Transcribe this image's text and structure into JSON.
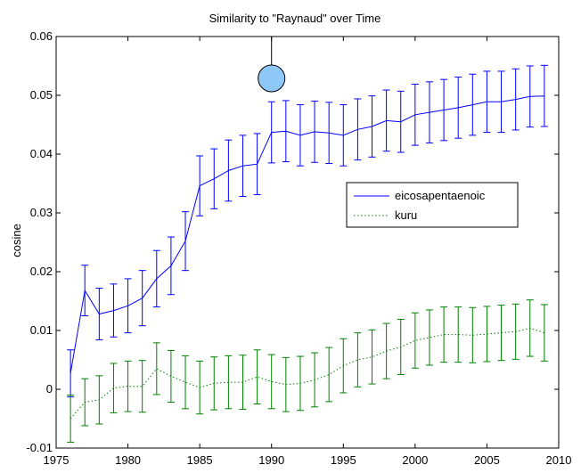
{
  "chart_data": {
    "type": "line",
    "title": "Similarity to \"Raynaud\" over Time",
    "xlabel": "",
    "ylabel": "cosine",
    "xlim": [
      1975,
      2010
    ],
    "ylim": [
      -0.01,
      0.06
    ],
    "x_ticks": [
      "1975",
      "1980",
      "1985",
      "1990",
      "1995",
      "2000",
      "2005",
      "2010"
    ],
    "y_ticks": [
      "-0.01",
      "0",
      "0.01",
      "0.02",
      "0.03",
      "0.04",
      "0.05",
      "0.06"
    ],
    "grid": false,
    "legend_position": "right",
    "marker": {
      "x": 1990,
      "shape": "circle",
      "color": "#8ec8f8"
    },
    "series": [
      {
        "name": "eicosapentaenoic",
        "color": "#0000ff",
        "style": "solid",
        "x": [
          1976,
          1977,
          1978,
          1979,
          1980,
          1981,
          1982,
          1983,
          1984,
          1985,
          1986,
          1987,
          1988,
          1989,
          1990,
          1991,
          1992,
          1993,
          1994,
          1995,
          1996,
          1997,
          1998,
          1999,
          2000,
          2001,
          2002,
          2003,
          2004,
          2005,
          2006,
          2007,
          2008,
          2009
        ],
        "y": [
          0.0027,
          0.0168,
          0.0128,
          0.0134,
          0.0142,
          0.0155,
          0.0188,
          0.021,
          0.0252,
          0.0346,
          0.0358,
          0.0372,
          0.038,
          0.0383,
          0.0437,
          0.0439,
          0.0432,
          0.0438,
          0.0436,
          0.0432,
          0.0442,
          0.0447,
          0.0457,
          0.0455,
          0.0467,
          0.0471,
          0.0475,
          0.0479,
          0.0484,
          0.0489,
          0.0489,
          0.0493,
          0.0498,
          0.0499
        ],
        "err": [
          0.004,
          0.0043,
          0.0044,
          0.0045,
          0.0046,
          0.0047,
          0.0048,
          0.0049,
          0.005,
          0.0051,
          0.0051,
          0.0052,
          0.0052,
          0.0052,
          0.0052,
          0.0052,
          0.0052,
          0.0052,
          0.0052,
          0.0052,
          0.0052,
          0.0052,
          0.0052,
          0.0052,
          0.0052,
          0.0052,
          0.0052,
          0.0052,
          0.0052,
          0.0052,
          0.0052,
          0.0052,
          0.0052,
          0.0052
        ]
      },
      {
        "name": "kuru",
        "color": "#008000",
        "style": "dotted",
        "x": [
          1976,
          1977,
          1978,
          1979,
          1980,
          1981,
          1982,
          1983,
          1984,
          1985,
          1986,
          1987,
          1988,
          1989,
          1990,
          1991,
          1992,
          1993,
          1994,
          1995,
          1996,
          1997,
          1998,
          1999,
          2000,
          2001,
          2002,
          2003,
          2004,
          2005,
          2006,
          2007,
          2008,
          2009
        ],
        "y": [
          -0.005,
          -0.0022,
          -0.0018,
          0.0002,
          0.0005,
          0.0005,
          0.0035,
          0.0022,
          0.0012,
          0.0003,
          0.001,
          0.0012,
          0.0012,
          0.0021,
          0.0013,
          0.0008,
          0.001,
          0.0016,
          0.0025,
          0.004,
          0.005,
          0.0055,
          0.0065,
          0.0072,
          0.0083,
          0.0088,
          0.0093,
          0.0093,
          0.0092,
          0.0094,
          0.0096,
          0.0098,
          0.0104,
          0.0096
        ],
        "err": [
          0.004,
          0.004,
          0.0041,
          0.0042,
          0.0043,
          0.0044,
          0.0044,
          0.0044,
          0.0045,
          0.0045,
          0.0045,
          0.0045,
          0.0046,
          0.0046,
          0.0046,
          0.0046,
          0.0046,
          0.0046,
          0.0046,
          0.0046,
          0.0046,
          0.0046,
          0.0047,
          0.0047,
          0.0047,
          0.0047,
          0.0047,
          0.0047,
          0.0047,
          0.0047,
          0.0047,
          0.0047,
          0.0048,
          0.0048
        ]
      }
    ]
  }
}
